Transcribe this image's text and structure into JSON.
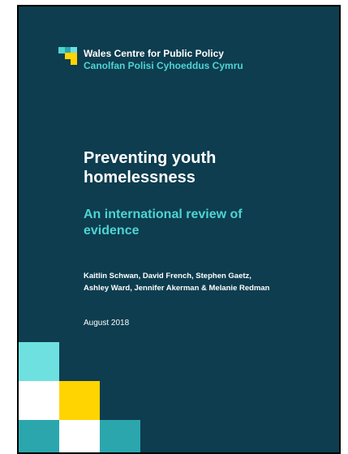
{
  "organisation": {
    "name_en": "Wales Centre for Public Policy",
    "name_cy": "Canolfan Polisi Cyhoeddus Cymru"
  },
  "report": {
    "title_line1": "Preventing youth",
    "title_line2": "homelessness",
    "subtitle_line1": "An international review of",
    "subtitle_line2": "evidence",
    "authors_line1": "Kaitlin Schwan, David French, Stephen Gaetz,",
    "authors_line2": "Ashley Ward, Jennifer Akerman & Melanie Redman",
    "date": "August 2018"
  },
  "colors": {
    "background": "#0d3d4f",
    "teal_accent": "#4fd3d3",
    "yellow": "#ffd400",
    "light_teal": "#6ee0e0",
    "mid_teal": "#2ba6ad",
    "white": "#ffffff"
  },
  "icons": [
    "wcpp-logo-icon"
  ]
}
